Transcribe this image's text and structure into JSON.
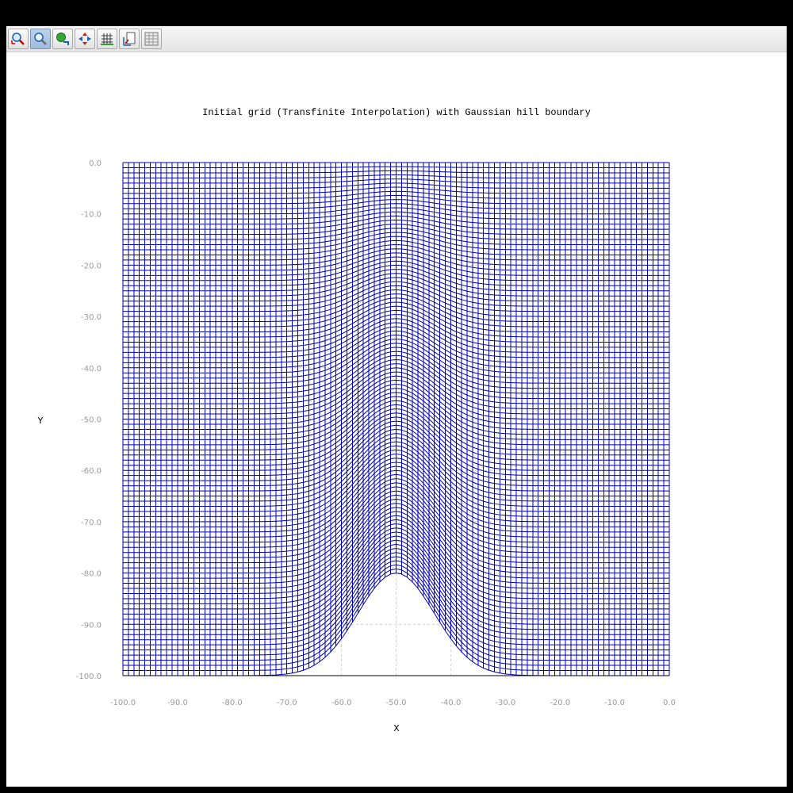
{
  "toolbar": {
    "buttons": [
      {
        "icon": "zoom-reset-icon",
        "active": false
      },
      {
        "icon": "zoom-icon",
        "active": true
      },
      {
        "icon": "rotate-icon",
        "active": false
      },
      {
        "icon": "pan-icon",
        "active": false
      },
      {
        "icon": "grid-toggle-icon",
        "active": false
      },
      {
        "icon": "axis-edit-icon",
        "active": false
      },
      {
        "icon": "data-table-icon",
        "active": false
      }
    ]
  },
  "chart_data": {
    "type": "line",
    "title": "Initial grid (Transfinite Interpolation) with Gaussian hill boundary",
    "xlabel": "X",
    "ylabel": "Y",
    "xlim": [
      -100,
      0
    ],
    "ylim": [
      -100,
      0
    ],
    "x_ticks": [
      "-100.0",
      "-90.0",
      "-80.0",
      "-70.0",
      "-60.0",
      "-50.0",
      "-40.0",
      "-30.0",
      "-20.0",
      "-10.0",
      "0.0"
    ],
    "y_ticks": [
      "0.0",
      "-10.0",
      "-20.0",
      "-30.0",
      "-40.0",
      "-50.0",
      "-60.0",
      "-70.0",
      "-80.0",
      "-90.0",
      "-100.0"
    ],
    "grid_i_lines": 101,
    "grid_j_lines": 101,
    "top_boundary_y": 0,
    "bottom_boundary": {
      "shape": "gaussian",
      "base_y": -100,
      "peak_x": -50,
      "peak_y": -80,
      "sigma": 7
    },
    "grid": true,
    "line_color": "#0000b4"
  }
}
